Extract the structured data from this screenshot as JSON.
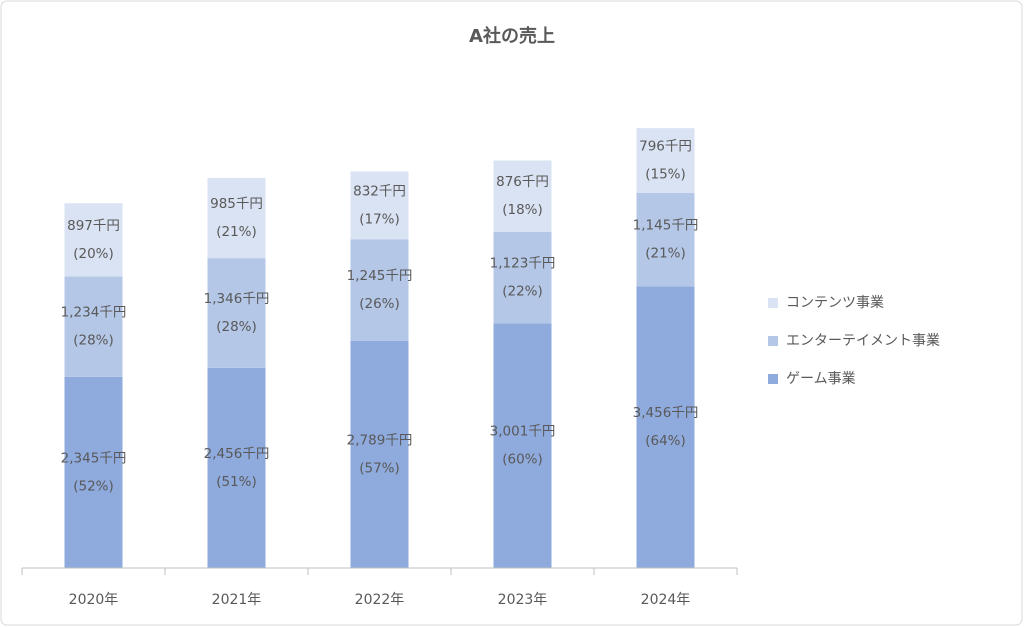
{
  "chart_data": {
    "type": "stacked_bar",
    "title": "A社の売上",
    "categories": [
      "2020年",
      "2021年",
      "2022年",
      "2023年",
      "2024年"
    ],
    "ylim": [
      0,
      6000
    ],
    "series": [
      {
        "name": "ゲーム事業",
        "color": "#8faadc",
        "values": [
          2345,
          2456,
          2789,
          3001,
          3456
        ],
        "value_labels": [
          "2,345千円",
          "2,456千円",
          "2,789千円",
          "3,001千円",
          "3,456千円"
        ],
        "share_labels": [
          "(52%)",
          "(51%)",
          "(57%)",
          "(60%)",
          "(64%)"
        ]
      },
      {
        "name": "エンターテイメント事業",
        "color": "#b4c7e7",
        "values": [
          1234,
          1346,
          1245,
          1123,
          1145
        ],
        "value_labels": [
          "1,234千円",
          "1,346千円",
          "1,245千円",
          "1,123千円",
          "1,145千円"
        ],
        "share_labels": [
          "(28%)",
          "(28%)",
          "(26%)",
          "(22%)",
          "(21%)"
        ]
      },
      {
        "name": "コンテンツ事業",
        "color": "#dae3f3",
        "values": [
          897,
          985,
          832,
          876,
          796
        ],
        "value_labels": [
          "897千円",
          "985千円",
          "832千円",
          "876千円",
          "796千円"
        ],
        "share_labels": [
          "(20%)",
          "(21%)",
          "(17%)",
          "(18%)",
          "(15%)"
        ]
      }
    ]
  }
}
